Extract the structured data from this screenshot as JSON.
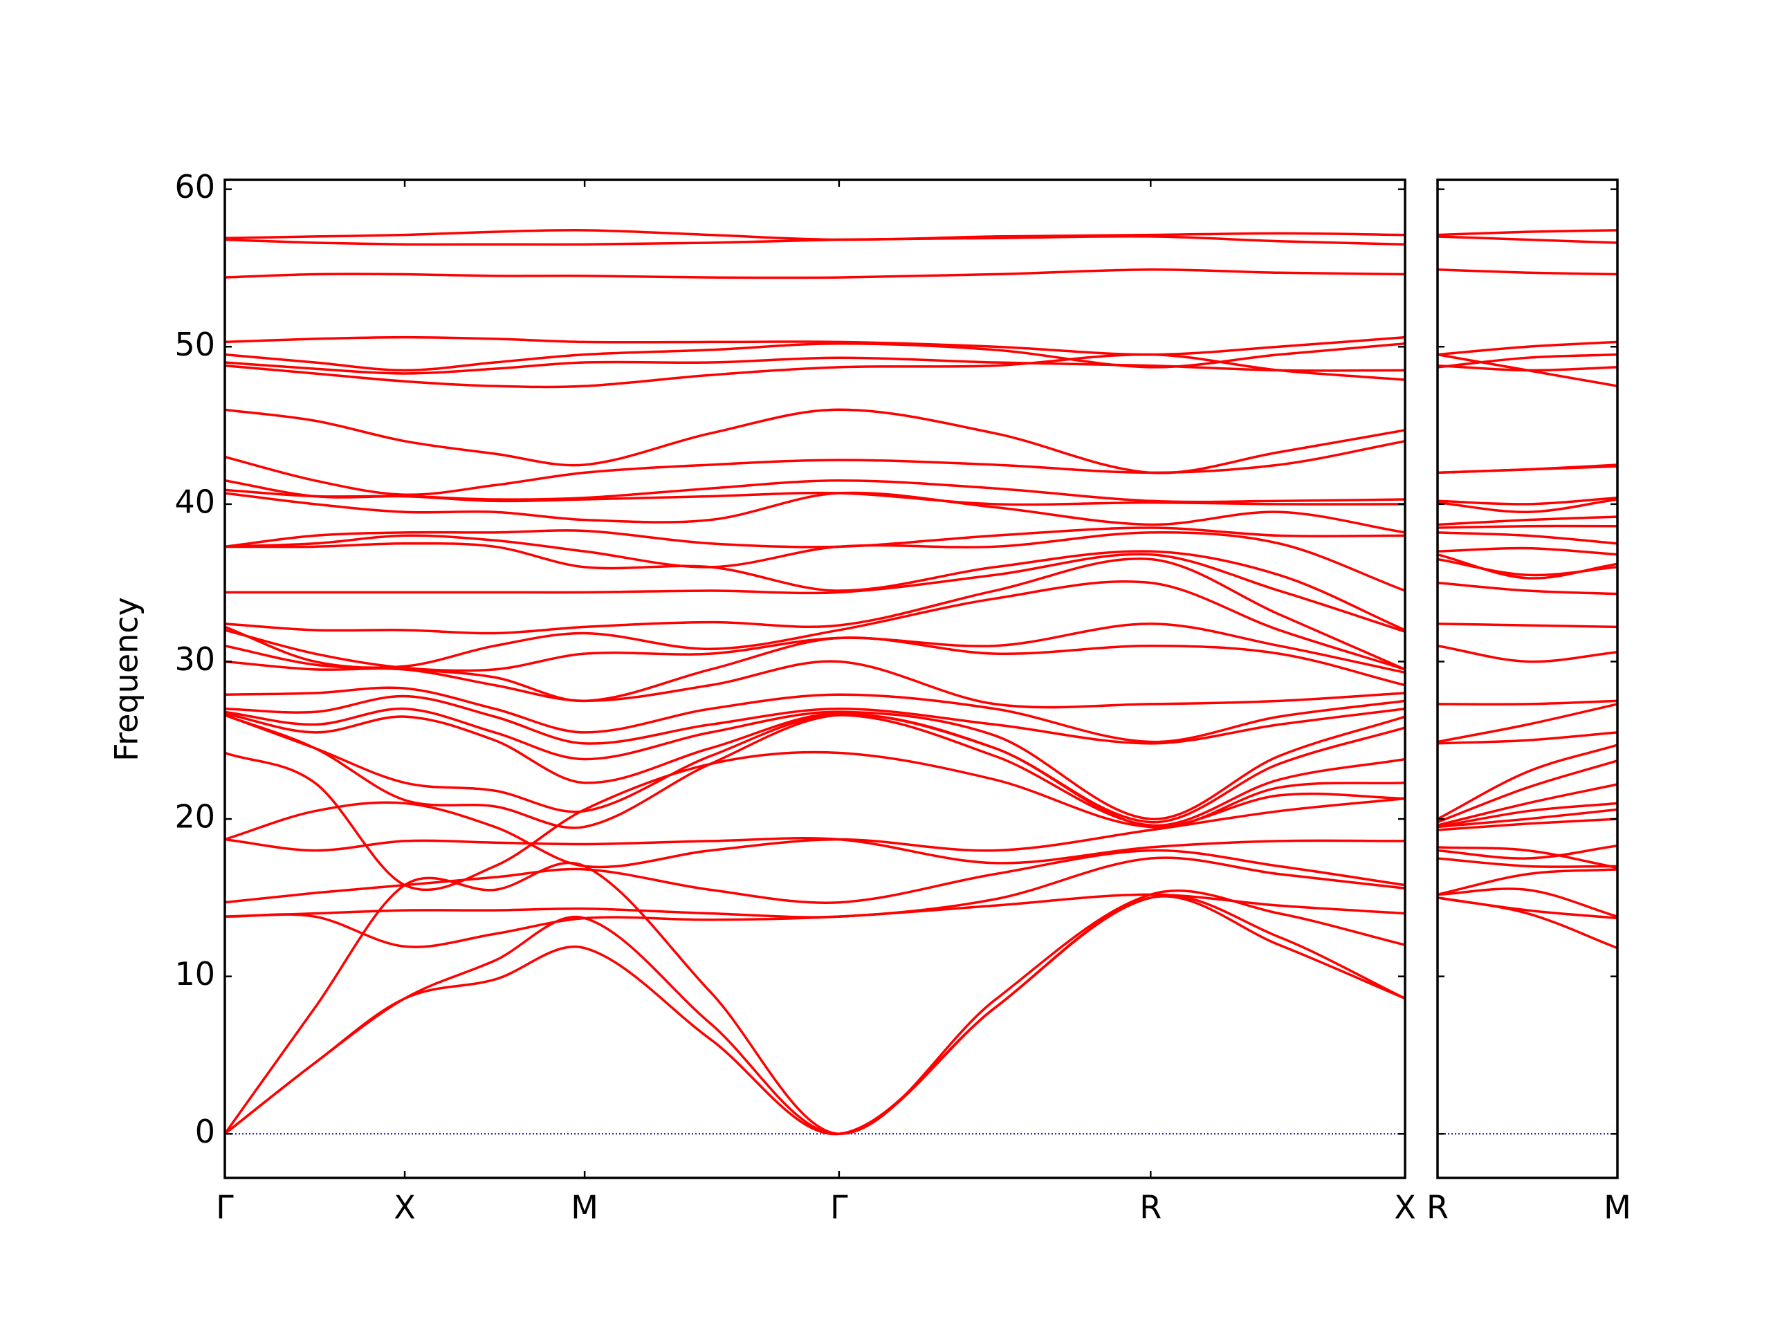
{
  "chart_data": [
    {
      "type": "line",
      "ylabel": "Frequency",
      "color": "#ff0000",
      "x": [
        0,
        0.25,
        0.5,
        0.75,
        1.0,
        1.35,
        1.707,
        2.14,
        2.573,
        2.93,
        3.28
      ],
      "xlim": [
        0,
        3.28
      ],
      "xticks": [
        {
          "value": 0,
          "label": "Γ"
        },
        {
          "value": 0.5,
          "label": "X"
        },
        {
          "value": 1.0,
          "label": "M"
        },
        {
          "value": 1.707,
          "label": "Γ"
        },
        {
          "value": 2.573,
          "label": "R"
        },
        {
          "value": 3.28,
          "label": "X"
        }
      ],
      "ylim": [
        -2.8,
        60.6
      ],
      "yticks": [
        0,
        10,
        20,
        30,
        40,
        50,
        60
      ],
      "ytick_labels": true,
      "hline": 0,
      "hline_color": "#0000aa",
      "series": [
        {
          "values": [
            0,
            4.5,
            8.6,
            9.8,
            11.8,
            6,
            0,
            8,
            15.0,
            12,
            8.6
          ]
        },
        {
          "values": [
            0,
            4.5,
            8.6,
            11,
            13.7,
            7,
            0,
            8,
            15.0,
            12.5,
            8.6
          ]
        },
        {
          "values": [
            0,
            8,
            15.8,
            15.5,
            17.0,
            9,
            0,
            8.5,
            15.2,
            14,
            12.0
          ]
        },
        {
          "values": [
            13.8,
            13.8,
            11.9,
            12.7,
            13.7,
            13.6,
            13.8,
            14.5,
            15.2,
            14.5,
            14.0
          ]
        },
        {
          "values": [
            13.8,
            14.0,
            14.2,
            14.2,
            14.3,
            14.0,
            13.8,
            14.9,
            17.5,
            16.5,
            15.6
          ]
        },
        {
          "values": [
            14.7,
            15.3,
            15.8,
            16.3,
            16.8,
            15.5,
            14.7,
            16.5,
            18.0,
            17,
            15.8
          ]
        },
        {
          "values": [
            18.7,
            18.0,
            18.6,
            18.5,
            18.4,
            18.6,
            18.7,
            17.2,
            18.2,
            18.6,
            18.6
          ]
        },
        {
          "values": [
            18.7,
            20.5,
            21.0,
            19.5,
            17.0,
            18.0,
            18.7,
            18.0,
            19.3,
            20.5,
            21.3
          ]
        },
        {
          "values": [
            24.2,
            22.3,
            15.8,
            17.0,
            20.6,
            23.5,
            24.2,
            22.5,
            19.5,
            21.5,
            21.3
          ]
        },
        {
          "values": [
            26.6,
            24.5,
            21.2,
            20.8,
            19.5,
            23.5,
            26.6,
            24.5,
            19.5,
            22.0,
            22.3
          ]
        },
        {
          "values": [
            26.6,
            24.5,
            22.3,
            21.8,
            20.5,
            24.0,
            26.6,
            24.0,
            19.6,
            22.5,
            23.8
          ]
        },
        {
          "values": [
            26.7,
            25.5,
            26.5,
            25.0,
            22.3,
            24.5,
            26.7,
            24.5,
            19.8,
            23.5,
            25.8
          ]
        },
        {
          "values": [
            26.8,
            26.0,
            27.0,
            25.5,
            23.8,
            25.5,
            26.8,
            25.3,
            20.0,
            24.0,
            26.5
          ]
        },
        {
          "values": [
            27.0,
            26.8,
            27.8,
            26.5,
            24.8,
            26.0,
            27.0,
            26.0,
            24.8,
            26,
            27.0
          ]
        },
        {
          "values": [
            27.9,
            28.0,
            28.3,
            27.0,
            25.5,
            27.0,
            27.9,
            27.0,
            24.9,
            26.5,
            27.5
          ]
        },
        {
          "values": [
            30.0,
            29.5,
            29.5,
            28.5,
            27.5,
            28.5,
            30.0,
            27.3,
            27.3,
            27.5,
            28.0
          ]
        },
        {
          "values": [
            31.0,
            29.8,
            29.5,
            29.0,
            27.5,
            29.5,
            31.5,
            30.5,
            31.0,
            30.5,
            28.5
          ]
        },
        {
          "values": [
            32.0,
            30.5,
            29.6,
            29.5,
            30.5,
            30.5,
            31.5,
            31.0,
            32.4,
            31,
            29.3
          ]
        },
        {
          "values": [
            32.2,
            30.0,
            29.7,
            31.0,
            31.8,
            30.8,
            32.0,
            34.0,
            35.0,
            32,
            29.5
          ]
        },
        {
          "values": [
            32.4,
            32.0,
            32.0,
            31.8,
            32.2,
            32.5,
            32.3,
            34.5,
            36.5,
            33,
            29.5
          ]
        },
        {
          "values": [
            34.4,
            34.4,
            34.4,
            34.4,
            34.4,
            34.5,
            34.4,
            35.5,
            36.8,
            34.5,
            31.9
          ]
        },
        {
          "values": [
            37.3,
            37.3,
            37.5,
            37.3,
            36.0,
            36.0,
            34.5,
            36.0,
            37.0,
            35.5,
            32.0
          ]
        },
        {
          "values": [
            37.3,
            37.5,
            38.0,
            37.7,
            37.0,
            36.0,
            37.3,
            37.3,
            38.2,
            37.5,
            34.5
          ]
        },
        {
          "values": [
            37.3,
            38.0,
            38.2,
            38.2,
            38.3,
            37.5,
            37.3,
            38.0,
            38.5,
            38,
            38.0
          ]
        },
        {
          "values": [
            40.7,
            40.0,
            39.5,
            39.5,
            39.0,
            39.0,
            40.7,
            39.8,
            38.7,
            39.5,
            38.2
          ]
        },
        {
          "values": [
            40.9,
            40.5,
            40.5,
            40.2,
            40.3,
            40.5,
            40.7,
            40.0,
            40.1,
            40,
            40.0
          ]
        },
        {
          "values": [
            41.5,
            40.5,
            40.5,
            40.3,
            40.4,
            41.0,
            41.5,
            41.0,
            40.2,
            40.2,
            40.3
          ]
        },
        {
          "values": [
            43.0,
            41.5,
            40.6,
            41.2,
            42.0,
            42.5,
            42.8,
            42.5,
            42.0,
            42.5,
            44.0
          ]
        },
        {
          "values": [
            46.0,
            45.3,
            44.0,
            43.2,
            42.5,
            44.5,
            46.0,
            44.5,
            42.0,
            43.3,
            44.7
          ]
        },
        {
          "values": [
            48.8,
            48.3,
            47.8,
            47.5,
            47.5,
            48.2,
            48.7,
            48.8,
            49.5,
            48.5,
            47.9
          ]
        },
        {
          "values": [
            49.0,
            48.6,
            48.3,
            48.6,
            49.0,
            49.0,
            49.3,
            49.0,
            48.8,
            48.5,
            48.5
          ]
        },
        {
          "values": [
            49.5,
            49.0,
            48.5,
            49.0,
            49.5,
            49.8,
            50.2,
            49.8,
            48.7,
            49.5,
            50.2
          ]
        },
        {
          "values": [
            50.3,
            50.5,
            50.6,
            50.5,
            50.3,
            50.3,
            50.3,
            50.0,
            49.5,
            50,
            50.6
          ]
        },
        {
          "values": [
            54.4,
            54.6,
            54.6,
            54.5,
            54.5,
            54.4,
            54.4,
            54.6,
            54.9,
            54.7,
            54.6
          ]
        },
        {
          "values": [
            56.8,
            56.6,
            56.5,
            56.5,
            56.5,
            56.6,
            56.8,
            56.9,
            57.0,
            56.7,
            56.5
          ]
        },
        {
          "values": [
            56.9,
            57.0,
            57.1,
            57.3,
            57.4,
            57.1,
            56.8,
            57.0,
            57.1,
            57.2,
            57.1
          ]
        }
      ]
    },
    {
      "type": "line",
      "color": "#ff0000",
      "x": [
        0,
        0.354,
        0.707
      ],
      "xlim": [
        0,
        0.707
      ],
      "xticks": [
        {
          "value": 0,
          "label": "R"
        },
        {
          "value": 0.707,
          "label": "M"
        }
      ],
      "ylim": [
        -2.8,
        60.6
      ],
      "yticks": [
        0,
        10,
        20,
        30,
        40,
        50,
        60
      ],
      "ytick_labels": false,
      "hline": 0,
      "hline_color": "#0000aa",
      "series": [
        {
          "values": [
            15.0,
            14.0,
            11.8
          ]
        },
        {
          "values": [
            15.0,
            14.2,
            13.7
          ]
        },
        {
          "values": [
            15.2,
            15.5,
            13.8
          ]
        },
        {
          "values": [
            15.2,
            16.5,
            16.8
          ]
        },
        {
          "values": [
            17.5,
            17.0,
            17.0
          ]
        },
        {
          "values": [
            18.0,
            17.5,
            18.3
          ]
        },
        {
          "values": [
            18.2,
            18.0,
            16.9
          ]
        },
        {
          "values": [
            19.3,
            19.7,
            20.0
          ]
        },
        {
          "values": [
            19.5,
            20.0,
            20.6
          ]
        },
        {
          "values": [
            19.5,
            20.5,
            21.0
          ]
        },
        {
          "values": [
            19.6,
            21.0,
            22.2
          ]
        },
        {
          "values": [
            19.8,
            22.0,
            23.7
          ]
        },
        {
          "values": [
            20.0,
            23.0,
            24.7
          ]
        },
        {
          "values": [
            24.8,
            25.0,
            25.5
          ]
        },
        {
          "values": [
            24.9,
            26.0,
            27.3
          ]
        },
        {
          "values": [
            27.3,
            27.3,
            27.5
          ]
        },
        {
          "values": [
            31.0,
            30.0,
            30.6
          ]
        },
        {
          "values": [
            32.4,
            32.3,
            32.2
          ]
        },
        {
          "values": [
            35.0,
            34.5,
            34.3
          ]
        },
        {
          "values": [
            36.5,
            35.5,
            36.0
          ]
        },
        {
          "values": [
            36.8,
            35.3,
            36.2
          ]
        },
        {
          "values": [
            37.0,
            37.2,
            36.8
          ]
        },
        {
          "values": [
            38.2,
            38.0,
            37.5
          ]
        },
        {
          "values": [
            38.5,
            38.6,
            38.6
          ]
        },
        {
          "values": [
            38.7,
            39.0,
            39.2
          ]
        },
        {
          "values": [
            40.1,
            39.5,
            40.3
          ]
        },
        {
          "values": [
            40.2,
            40.0,
            40.4
          ]
        },
        {
          "values": [
            42.0,
            42.2,
            42.4
          ]
        },
        {
          "values": [
            42.0,
            42.2,
            42.5
          ]
        },
        {
          "values": [
            49.5,
            48.5,
            47.5
          ]
        },
        {
          "values": [
            48.8,
            48.5,
            48.7
          ]
        },
        {
          "values": [
            48.7,
            49.3,
            49.5
          ]
        },
        {
          "values": [
            49.5,
            50.0,
            50.3
          ]
        },
        {
          "values": [
            54.9,
            54.7,
            54.6
          ]
        },
        {
          "values": [
            57.0,
            56.8,
            56.6
          ]
        },
        {
          "values": [
            57.1,
            57.3,
            57.4
          ]
        }
      ]
    }
  ]
}
